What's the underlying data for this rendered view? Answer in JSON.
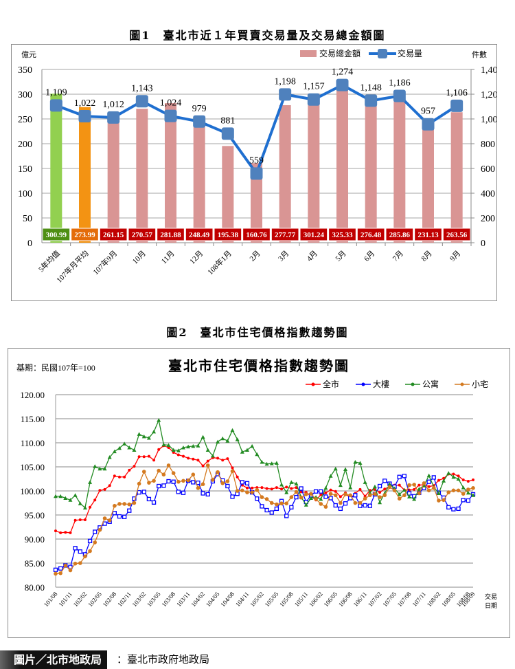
{
  "figure1": {
    "title": "圖1　臺北市近１年買賣交易量及交易總金額圖",
    "left_axis_unit": "億元",
    "right_axis_unit": "件數",
    "legend": {
      "bar": "交易總金額",
      "line": "交易量"
    }
  },
  "figure2": {
    "title": "圖2　臺北市住宅價格指數趨勢圖",
    "inner_title": "臺北市住宅價格指數趨勢圖",
    "base_period": "基期：民國107年=100",
    "x_unit_line1": "交易",
    "x_unit_line2": "日期",
    "legend": [
      "全市",
      "大樓",
      "公寓",
      "小宅"
    ]
  },
  "footer": {
    "credit": "圖片／北市地政局",
    "source": "：臺北市政府地政局"
  },
  "colors": {
    "bar_default": "#d99594",
    "bar_5yr": "#92d050",
    "bar_107avg": "#f39313",
    "line_volume": "#1f6fd0",
    "marker_volume": "#4f81bd",
    "label_5yr": "#4e8f14",
    "label_107avg": "#e46c0a",
    "label_default": "#c00000",
    "series_all": "#ff0000",
    "series_building": "#0000ff",
    "series_apartment": "#228b22",
    "series_small": "#d47a20"
  },
  "chart_data": [
    {
      "type": "bar+line",
      "title": "圖1　臺北市近１年買賣交易量及交易總金額圖",
      "categories": [
        "5年均值",
        "107年月平均",
        "107年9月",
        "10月",
        "11月",
        "12月",
        "108年1月",
        "2月",
        "3月",
        "4月",
        "5月",
        "6月",
        "7月",
        "8月",
        "9月"
      ],
      "series": [
        {
          "name": "交易總金額",
          "axis": "left",
          "type": "bar",
          "values": [
            300.99,
            273.99,
            261.15,
            270.57,
            281.88,
            248.49,
            195.38,
            160.76,
            277.77,
            301.24,
            325.33,
            276.48,
            285.86,
            231.13,
            263.56
          ]
        },
        {
          "name": "交易量",
          "axis": "right",
          "type": "line",
          "values": [
            1109,
            1022,
            1012,
            1143,
            1024,
            979,
            881,
            559,
            1198,
            1157,
            1274,
            1148,
            1186,
            957,
            1106
          ]
        }
      ],
      "ylabel_left": "億元",
      "ylim_left": [
        0,
        350
      ],
      "yticks_left": [
        0,
        50,
        100,
        150,
        200,
        250,
        300,
        350
      ],
      "ylabel_right": "件數",
      "ylim_right": [
        0,
        1400
      ],
      "yticks_right": [
        "0",
        "200",
        "400",
        "600",
        "800",
        "1,000",
        "1,200",
        "1,400"
      ],
      "volume_labels": [
        "1,109",
        "1,022",
        "1,012",
        "1,143",
        "1,024",
        "979",
        "881",
        "559",
        "1,198",
        "1,157",
        "1,274",
        "1,148",
        "1,186",
        "957",
        "1,106"
      ],
      "grid": true,
      "legend_position": "top-right"
    },
    {
      "type": "line",
      "title": "臺北市住宅價格指數趨勢圖",
      "subtitle": "基期：民國107年=100",
      "x_start": "101/08",
      "x_end": "108/09",
      "points": 86,
      "xtick_labels": [
        "101/08",
        "101/11",
        "102/02",
        "102/05",
        "102/08",
        "102/11",
        "103/02",
        "103/05",
        "103/08",
        "103/11",
        "104/02",
        "104/05",
        "104/08",
        "104/11",
        "105/02",
        "105/05",
        "105/08",
        "105/11",
        "106/02",
        "106/05",
        "106/08",
        "106/11",
        "107/02",
        "107/05",
        "107/08",
        "107/11",
        "108/02",
        "108/05",
        "108/08",
        "108/09"
      ],
      "xlabel": "交易日期",
      "ylabel": "",
      "ylim": [
        80,
        120
      ],
      "yticks": [
        "80.00",
        "85.00",
        "90.00",
        "95.00",
        "100.00",
        "105.00",
        "110.00",
        "115.00",
        "120.00"
      ],
      "grid": true,
      "legend_position": "top-right",
      "series": [
        {
          "name": "全市",
          "values": [
            91.7,
            91.3,
            91.4,
            91.3,
            93.9,
            94.0,
            94.0,
            96.6,
            98.1,
            100.1,
            100.3,
            101.1,
            103.1,
            102.9,
            102.9,
            104.3,
            105.1,
            107.1,
            107.1,
            107.2,
            106.4,
            108.6,
            109.4,
            109.0,
            108.0,
            107.5,
            107.2,
            106.8,
            106.6,
            106.4,
            105.2,
            106.2,
            106.9,
            106.8,
            106.4,
            106.7,
            104.8,
            102.9,
            101.2,
            100.6,
            100.6,
            100.7,
            100.7,
            100.5,
            100.4,
            100.7,
            100.4,
            100.8,
            100.5,
            100.7,
            99.8,
            99.7,
            98.9,
            98.1,
            99.2,
            99.6,
            100.2,
            99.9,
            98.8,
            99.6,
            98.4,
            99.5,
            100.3,
            98.9,
            100.1,
            100.3,
            99.7,
            100.4,
            100.9,
            101.2,
            101.2,
            100.2,
            100.2,
            100.3,
            101.2,
            101.3,
            100.9,
            101.1,
            102.2,
            102.6,
            103.5,
            103.5,
            103.1,
            102.3,
            102.0,
            102.3
          ]
        },
        {
          "name": "大樓",
          "values": [
            83.6,
            83.9,
            84.5,
            84.2,
            88.1,
            87.4,
            86.8,
            89.6,
            91.5,
            92.4,
            93.2,
            93.6,
            95.4,
            94.7,
            94.6,
            95.9,
            98.4,
            99.7,
            99.8,
            98.3,
            97.6,
            101.0,
            101.1,
            102.0,
            101.9,
            99.8,
            99.6,
            102.1,
            101.8,
            101.7,
            99.5,
            99.3,
            102.0,
            103.5,
            102.2,
            101.0,
            98.8,
            99.4,
            101.8,
            101.6,
            99.7,
            98.4,
            96.8,
            96.0,
            95.5,
            96.3,
            97.9,
            94.8,
            96.6,
            98.7,
            100.5,
            97.7,
            99.1,
            99.9,
            99.9,
            98.8,
            98.5,
            97.0,
            96.3,
            97.4,
            98.5,
            99.1,
            96.9,
            97.0,
            96.9,
            99.3,
            101.0,
            102.1,
            101.5,
            100.9,
            102.9,
            103.1,
            99.5,
            98.9,
            99.6,
            100.6,
            101.9,
            102.8,
            99.6,
            98.6,
            96.6,
            96.2,
            96.3,
            98.1,
            98.0,
            99.3
          ]
        },
        {
          "name": "公寓",
          "values": [
            98.9,
            98.9,
            98.5,
            98.1,
            99.1,
            97.4,
            96.5,
            101.8,
            105.1,
            104.6,
            104.6,
            107.0,
            108.2,
            108.9,
            109.8,
            109.0,
            108.5,
            111.8,
            111.3,
            111.0,
            112.3,
            114.7,
            109.6,
            109.5,
            108.5,
            108.4,
            109.0,
            109.2,
            109.3,
            109.4,
            111.2,
            108.5,
            107.3,
            110.2,
            110.9,
            110.4,
            112.6,
            110.7,
            108.1,
            108.5,
            109.3,
            107.6,
            106.0,
            105.6,
            105.7,
            105.8,
            101.3,
            99.7,
            101.8,
            101.5,
            98.7,
            97.1,
            98.5,
            98.7,
            98.3,
            100.6,
            103.1,
            104.6,
            101.2,
            104.5,
            100.7,
            106.0,
            105.8,
            101.8,
            99.6,
            100.9,
            97.6,
            99.5,
            101.4,
            100.5,
            99.3,
            100.2,
            98.8,
            98.3,
            100.4,
            101.1,
            103.2,
            100.8,
            99.5,
            102.1,
            103.7,
            102.9,
            102.5,
            100.7,
            99.6,
            99.1
          ]
        },
        {
          "name": "小宅",
          "values": [
            82.8,
            82.9,
            84.5,
            83.5,
            84.9,
            85.0,
            86.4,
            87.5,
            89.3,
            91.9,
            94.3,
            93.9,
            96.9,
            97.3,
            97.3,
            97.2,
            97.5,
            101.5,
            104.0,
            101.7,
            102.1,
            104.2,
            103.4,
            105.3,
            103.7,
            101.9,
            102.1,
            102.2,
            103.4,
            100.6,
            101.4,
            105.3,
            102.3,
            103.9,
            101.6,
            102.0,
            104.1,
            100.0,
            100.1,
            99.7,
            99.7,
            100.2,
            98.7,
            98.3,
            97.5,
            97.2,
            97.4,
            97.4,
            98.7,
            99.8,
            98.6,
            99.3,
            99.4,
            98.3,
            97.3,
            96.7,
            99.4,
            99.1,
            97.5,
            99.3,
            99.1,
            97.5,
            97.5,
            98.4,
            99.1,
            99.4,
            98.7,
            99.1,
            100.8,
            100.1,
            98.4,
            99.1,
            101.2,
            101.3,
            99.5,
            101.6,
            100.1,
            100.6,
            98.0,
            98.1,
            99.7,
            100.1,
            100.1,
            99.4,
            100.3,
            100.6
          ]
        }
      ]
    }
  ]
}
